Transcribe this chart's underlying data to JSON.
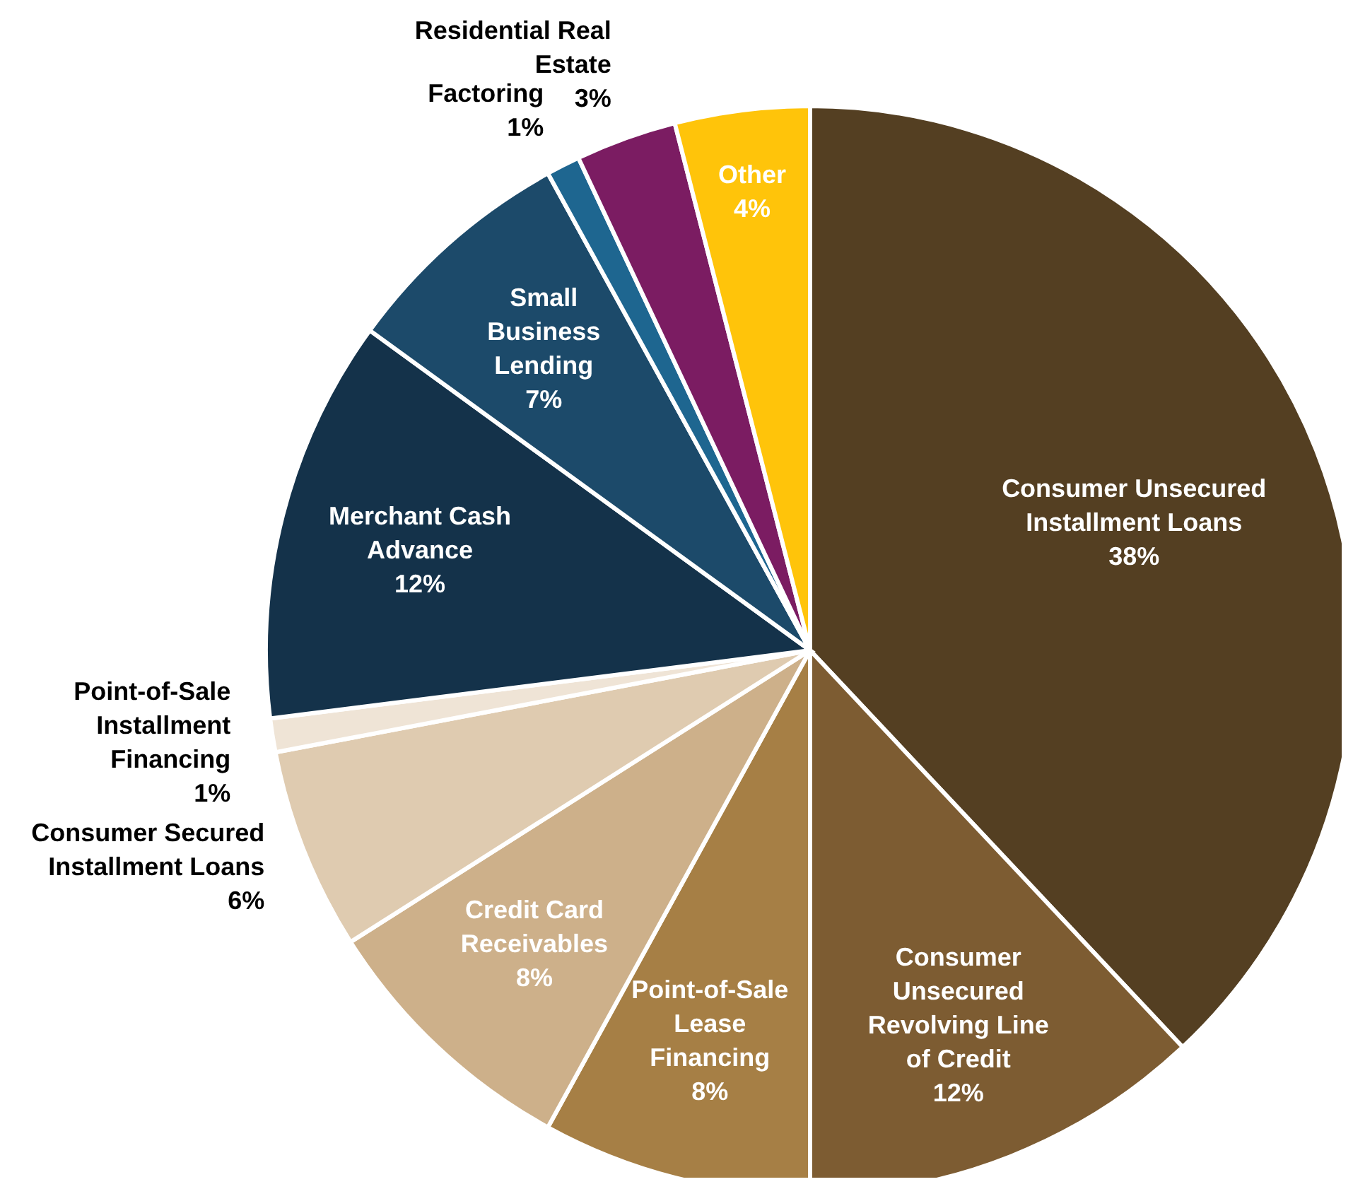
{
  "chart_data": {
    "type": "pie",
    "categories": [
      "Consumer Unsecured Installment Loans",
      "Consumer Unsecured Revolving Line of Credit",
      "Point-of-Sale Lease Financing",
      "Credit Card Receivables",
      "Consumer Secured Installment Loans",
      "Point-of-Sale Installment Financing",
      "Merchant Cash Advance",
      "Small Business Lending",
      "Factoring",
      "Residential Real Estate",
      "Other"
    ],
    "values": [
      38,
      12,
      8,
      8,
      6,
      1,
      12,
      7,
      1,
      3,
      4
    ],
    "value_labels": [
      "38%",
      "12%",
      "8%",
      "8%",
      "6%",
      "1%",
      "12%",
      "7%",
      "1%",
      "3%",
      "4%"
    ],
    "colors": [
      "#543f22",
      "#7d5c32",
      "#a67f45",
      "#cdb08a",
      "#dfcbb0",
      "#efe4d6",
      "#14324a",
      "#1c4a6a",
      "#1e6690",
      "#7b1c62",
      "#ffc40a"
    ],
    "legend": false
  }
}
